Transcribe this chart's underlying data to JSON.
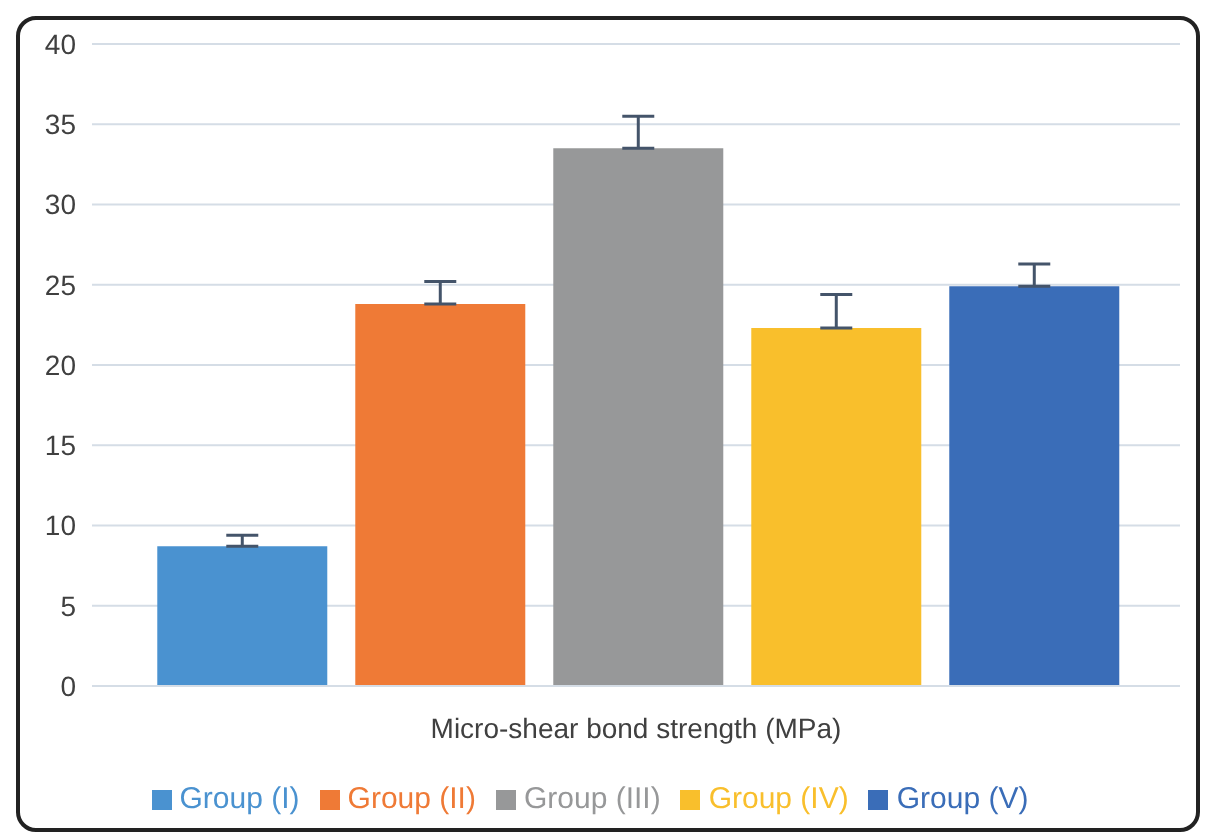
{
  "chart_data": {
    "type": "bar",
    "categories": [
      "Micro-shear bond strength (MPa)"
    ],
    "series": [
      {
        "name": "Group (I)",
        "color": "#4a92d0",
        "values": [
          8.7
        ],
        "errors": [
          [
            8.7,
            9.4
          ]
        ]
      },
      {
        "name": "Group (II)",
        "color": "#ef7a36",
        "values": [
          23.8
        ],
        "errors": [
          [
            23.8,
            25.2
          ]
        ]
      },
      {
        "name": "Group (III)",
        "color": "#979899",
        "values": [
          33.5
        ],
        "errors": [
          [
            33.5,
            35.5
          ]
        ]
      },
      {
        "name": "Group (IV)",
        "color": "#f9bf2c",
        "values": [
          22.3
        ],
        "errors": [
          [
            22.3,
            24.4
          ]
        ]
      },
      {
        "name": "Group (V)",
        "color": "#3a6db8",
        "values": [
          24.9
        ],
        "errors": [
          [
            24.9,
            26.3
          ]
        ]
      }
    ],
    "ylim": [
      0,
      40
    ],
    "yticks": [
      0,
      5,
      10,
      15,
      20,
      25,
      30,
      35,
      40
    ],
    "grid": "y",
    "legend": "bottom"
  }
}
